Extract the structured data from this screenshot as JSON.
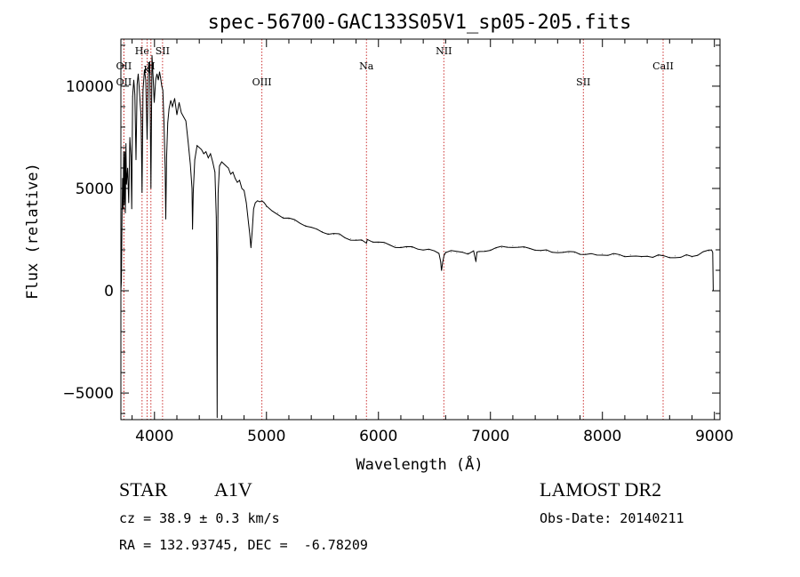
{
  "chart_data": {
    "type": "line",
    "title": "spec-56700-GAC133S05V1_sp05-205.fits",
    "xlabel": "Wavelength (Å)",
    "ylabel": "Flux (relative)",
    "xlim": [
      3700,
      9050
    ],
    "ylim": [
      -6300,
      12300
    ],
    "x_ticks": [
      4000,
      5000,
      6000,
      7000,
      8000,
      9000
    ],
    "y_ticks": [
      -5000,
      0,
      5000,
      10000
    ],
    "grid": false,
    "lines_color": "#cc3333",
    "spectrum_color": "#000000",
    "line_markers": [
      {
        "name": "OII",
        "x": 3727,
        "row": "top"
      },
      {
        "name": "OII",
        "x": 3727,
        "row": "second"
      },
      {
        "name": "He",
        "x": 3889,
        "row": "high"
      },
      {
        "name": "K",
        "x": 3934,
        "row": "mid"
      },
      {
        "name": "H",
        "x": 3968,
        "row": "top"
      },
      {
        "name": "SII",
        "x": 4072,
        "row": "high"
      },
      {
        "name": "OIII",
        "x": 4959,
        "row": "second"
      },
      {
        "name": "Na",
        "x": 5893,
        "row": "top"
      },
      {
        "name": "NII",
        "x": 6584,
        "row": "high"
      },
      {
        "name": "SII",
        "x": 7830,
        "row": "second"
      },
      {
        "name": "CaII",
        "x": 8542,
        "row": "top"
      }
    ],
    "series": [
      {
        "points": [
          [
            3700,
            0
          ],
          [
            3705,
            500
          ],
          [
            3710,
            3800
          ],
          [
            3715,
            5500
          ],
          [
            3720,
            4000
          ],
          [
            3725,
            6800
          ],
          [
            3730,
            4200
          ],
          [
            3735,
            6800
          ],
          [
            3740,
            3800
          ],
          [
            3745,
            7200
          ],
          [
            3750,
            5200
          ],
          [
            3760,
            6000
          ],
          [
            3770,
            4300
          ],
          [
            3780,
            7500
          ],
          [
            3790,
            6600
          ],
          [
            3797,
            4000
          ],
          [
            3805,
            9500
          ],
          [
            3815,
            10300
          ],
          [
            3825,
            9600
          ],
          [
            3835,
            6400
          ],
          [
            3845,
            10100
          ],
          [
            3855,
            10600
          ],
          [
            3865,
            9800
          ],
          [
            3880,
            8500
          ],
          [
            3889,
            4800
          ],
          [
            3898,
            9800
          ],
          [
            3910,
            10800
          ],
          [
            3922,
            10300
          ],
          [
            3934,
            7400
          ],
          [
            3945,
            10500
          ],
          [
            3958,
            11200
          ],
          [
            3968,
            5000
          ],
          [
            3978,
            11500
          ],
          [
            3988,
            10400
          ],
          [
            3998,
            9200
          ],
          [
            4010,
            10300
          ],
          [
            4022,
            10600
          ],
          [
            4034,
            10300
          ],
          [
            4045,
            10700
          ],
          [
            4055,
            10400
          ],
          [
            4065,
            10000
          ],
          [
            4075,
            9800
          ],
          [
            4085,
            8200
          ],
          [
            4095,
            6000
          ],
          [
            4101,
            3500
          ],
          [
            4108,
            6500
          ],
          [
            4118,
            8200
          ],
          [
            4130,
            8900
          ],
          [
            4145,
            9300
          ],
          [
            4160,
            9000
          ],
          [
            4180,
            9400
          ],
          [
            4200,
            8600
          ],
          [
            4220,
            9200
          ],
          [
            4240,
            8700
          ],
          [
            4260,
            8500
          ],
          [
            4280,
            8300
          ],
          [
            4300,
            7300
          ],
          [
            4320,
            6200
          ],
          [
            4335,
            5000
          ],
          [
            4340,
            3000
          ],
          [
            4346,
            4800
          ],
          [
            4360,
            6400
          ],
          [
            4380,
            7100
          ],
          [
            4400,
            7000
          ],
          [
            4420,
            6900
          ],
          [
            4440,
            6700
          ],
          [
            4460,
            6800
          ],
          [
            4480,
            6500
          ],
          [
            4500,
            6700
          ],
          [
            4520,
            6300
          ],
          [
            4540,
            5800
          ],
          [
            4552,
            3600
          ],
          [
            4556,
            1500
          ],
          [
            4560,
            -6200
          ],
          [
            4563,
            1200
          ],
          [
            4568,
            4800
          ],
          [
            4580,
            6100
          ],
          [
            4600,
            6300
          ],
          [
            4620,
            6200
          ],
          [
            4640,
            6100
          ],
          [
            4660,
            6000
          ],
          [
            4680,
            5700
          ],
          [
            4700,
            5800
          ],
          [
            4720,
            5500
          ],
          [
            4740,
            5300
          ],
          [
            4760,
            5400
          ],
          [
            4780,
            5000
          ],
          [
            4800,
            4900
          ],
          [
            4820,
            4300
          ],
          [
            4840,
            3300
          ],
          [
            4850,
            2800
          ],
          [
            4861,
            2100
          ],
          [
            4872,
            2900
          ],
          [
            4885,
            4000
          ],
          [
            4900,
            4300
          ],
          [
            4920,
            4400
          ],
          [
            4940,
            4350
          ],
          [
            4960,
            4400
          ],
          [
            4980,
            4300
          ],
          [
            5000,
            4100
          ],
          [
            5050,
            3900
          ],
          [
            5100,
            3800
          ],
          [
            5150,
            3600
          ],
          [
            5200,
            3500
          ],
          [
            5250,
            3400
          ],
          [
            5300,
            3300
          ],
          [
            5350,
            3200
          ],
          [
            5400,
            3100
          ],
          [
            5450,
            3000
          ],
          [
            5500,
            2900
          ],
          [
            5550,
            2800
          ],
          [
            5600,
            2750
          ],
          [
            5650,
            2700
          ],
          [
            5700,
            2600
          ],
          [
            5750,
            2550
          ],
          [
            5800,
            2500
          ],
          [
            5850,
            2450
          ],
          [
            5893,
            2350
          ],
          [
            5900,
            2500
          ],
          [
            5950,
            2400
          ],
          [
            6000,
            2350
          ],
          [
            6050,
            2300
          ],
          [
            6100,
            2250
          ],
          [
            6150,
            2200
          ],
          [
            6200,
            2150
          ],
          [
            6250,
            2100
          ],
          [
            6300,
            2100
          ],
          [
            6350,
            2050
          ],
          [
            6400,
            2000
          ],
          [
            6450,
            2000
          ],
          [
            6500,
            1950
          ],
          [
            6540,
            1800
          ],
          [
            6555,
            1400
          ],
          [
            6563,
            1000
          ],
          [
            6572,
            1400
          ],
          [
            6585,
            1800
          ],
          [
            6600,
            1900
          ],
          [
            6650,
            1900
          ],
          [
            6700,
            1850
          ],
          [
            6750,
            1900
          ],
          [
            6800,
            1850
          ],
          [
            6850,
            1950
          ],
          [
            6870,
            1400
          ],
          [
            6880,
            1850
          ],
          [
            6900,
            1900
          ],
          [
            6950,
            1950
          ],
          [
            7000,
            2000
          ],
          [
            7050,
            2050
          ],
          [
            7100,
            2100
          ],
          [
            7150,
            2150
          ],
          [
            7200,
            2200
          ],
          [
            7250,
            2150
          ],
          [
            7300,
            2100
          ],
          [
            7350,
            2050
          ],
          [
            7400,
            2000
          ],
          [
            7450,
            1950
          ],
          [
            7500,
            1950
          ],
          [
            7550,
            1900
          ],
          [
            7600,
            1950
          ],
          [
            7650,
            1900
          ],
          [
            7700,
            1850
          ],
          [
            7750,
            1850
          ],
          [
            7800,
            1800
          ],
          [
            7850,
            1800
          ],
          [
            7900,
            1800
          ],
          [
            7950,
            1750
          ],
          [
            8000,
            1800
          ],
          [
            8050,
            1750
          ],
          [
            8100,
            1750
          ],
          [
            8150,
            1700
          ],
          [
            8200,
            1700
          ],
          [
            8250,
            1750
          ],
          [
            8300,
            1700
          ],
          [
            8350,
            1650
          ],
          [
            8400,
            1700
          ],
          [
            8450,
            1650
          ],
          [
            8500,
            1700
          ],
          [
            8550,
            1650
          ],
          [
            8600,
            1650
          ],
          [
            8650,
            1700
          ],
          [
            8700,
            1650
          ],
          [
            8750,
            1700
          ],
          [
            8800,
            1650
          ],
          [
            8850,
            1750
          ],
          [
            8900,
            1900
          ],
          [
            8950,
            1950
          ],
          [
            8975,
            2000
          ],
          [
            8985,
            1800
          ],
          [
            8990,
            0
          ]
        ]
      }
    ]
  },
  "info": {
    "object_class": "STAR",
    "subclass": "A1V",
    "survey": "LAMOST DR2",
    "redshift": "cz = 38.9 ± 0.3 km/s",
    "obs_date": "Obs-Date: 20140211",
    "coords": "RA = 132.93745, DEC =  -6.78209"
  }
}
